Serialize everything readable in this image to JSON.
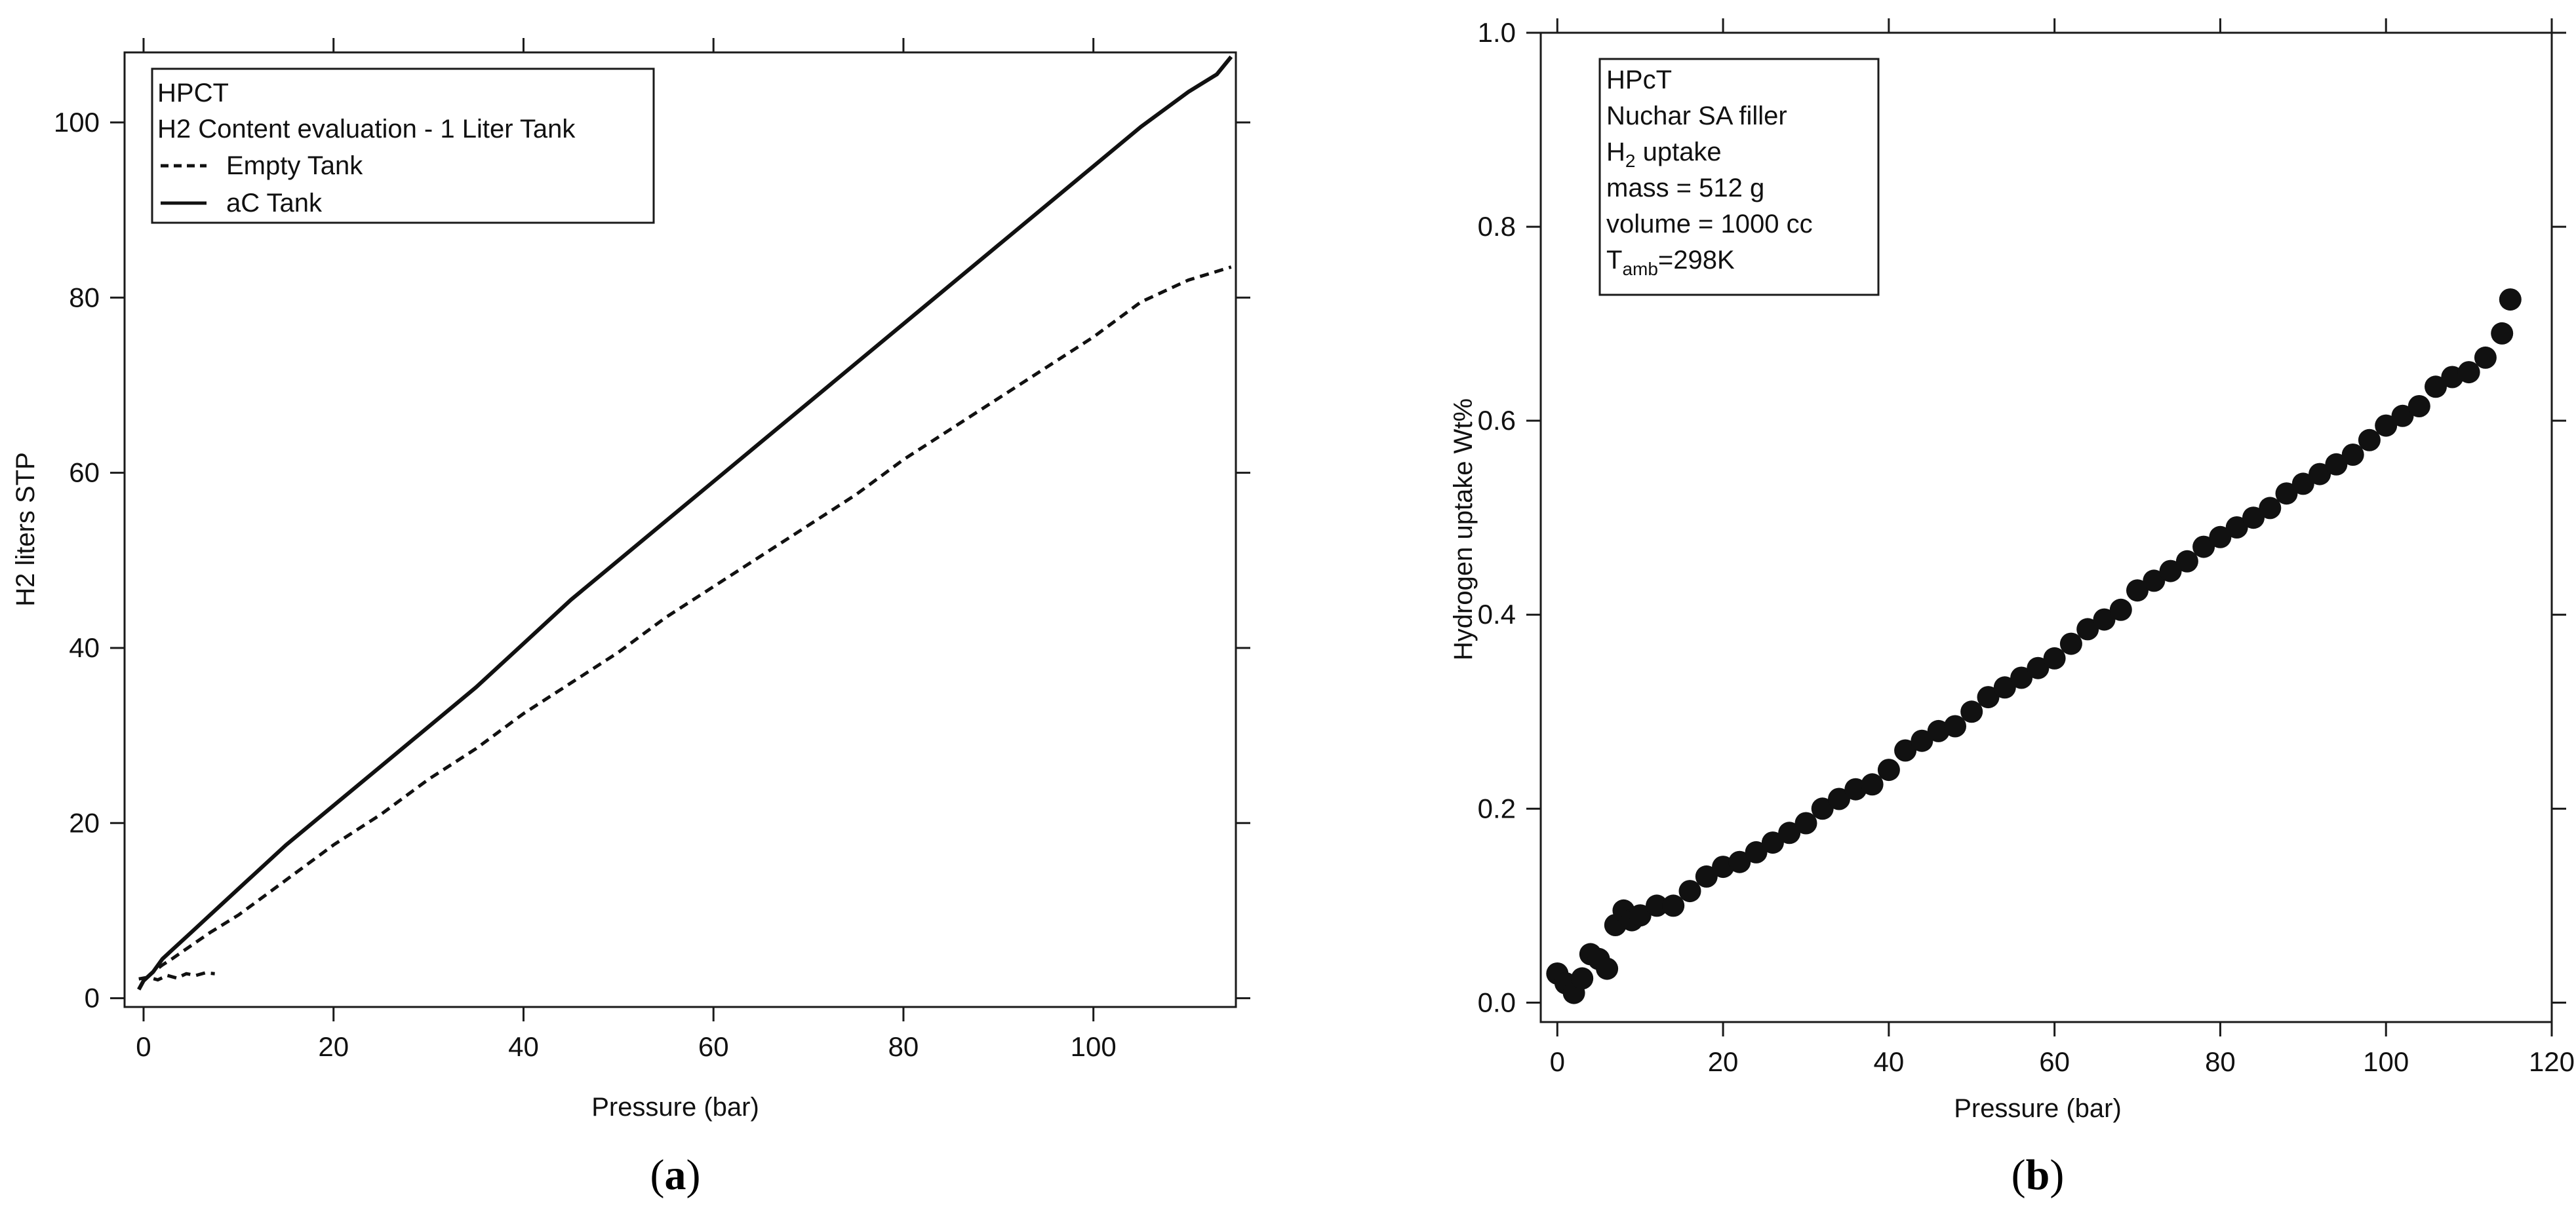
{
  "chart_data": [
    {
      "type": "line",
      "panel_label": "a",
      "legend_lines": [
        "HPCT",
        "H2 Content evaluation - 1 Liter Tank"
      ],
      "xlabel": "Pressure (bar)",
      "ylabel": "H2 liters STP",
      "xlim": [
        -2,
        115
      ],
      "ylim": [
        -1,
        108
      ],
      "xticks": [
        0,
        20,
        40,
        60,
        80,
        100
      ],
      "yticks": [
        0,
        20,
        40,
        60,
        80,
        100
      ],
      "grid": false,
      "legend": "top-left",
      "series": [
        {
          "name": "Empty Tank",
          "style": "dashed",
          "x": [
            -0.5,
            0,
            1,
            2,
            3,
            5,
            7,
            10,
            15,
            20,
            25,
            30,
            35,
            40,
            45,
            50,
            55,
            60,
            65,
            70,
            75,
            80,
            85,
            90,
            95,
            100,
            105,
            110,
            114.5
          ],
          "y": [
            1,
            2,
            3,
            3.8,
            4.5,
            6,
            7.5,
            9.5,
            13.5,
            17.5,
            21,
            25,
            28.5,
            32.5,
            36,
            39.5,
            43.5,
            47,
            50.5,
            54,
            57.5,
            61.5,
            65,
            68.5,
            72,
            75.5,
            79.5,
            82,
            83.5
          ]
        },
        {
          "name": "aC Tank",
          "style": "solid",
          "x": [
            -0.5,
            0,
            1,
            2,
            3,
            5,
            7,
            10,
            15,
            20,
            25,
            30,
            35,
            40,
            45,
            50,
            55,
            60,
            65,
            70,
            75,
            80,
            85,
            90,
            95,
            100,
            105,
            110,
            113,
            114.5
          ],
          "y": [
            1,
            2,
            3,
            4.5,
            5.5,
            7.5,
            9.5,
            12.5,
            17.5,
            22,
            26.5,
            31,
            35.5,
            40.5,
            45.5,
            50,
            54.5,
            59,
            63.5,
            68,
            72.5,
            77,
            81.5,
            86,
            90.5,
            95,
            99.5,
            103.5,
            105.5,
            107.5
          ]
        },
        {
          "name": "",
          "style": "dashed",
          "x": [
            -0.5,
            0.5,
            1.5,
            2.5,
            3.5,
            4.5,
            5.5,
            6.5,
            7.5
          ],
          "y": [
            2.2,
            2.4,
            2.1,
            2.6,
            2.3,
            2.8,
            2.6,
            2.9,
            2.8
          ]
        }
      ]
    },
    {
      "type": "scatter",
      "panel_label": "b",
      "legend_lines": [
        "HPcT",
        "Nuchar SA filler",
        "H2 uptake",
        "mass = 512 g",
        "volume = 1000 cc",
        "Tamb=298K"
      ],
      "xlabel": "Pressure (bar)",
      "ylabel": "Hydrogen uptake Wt%",
      "xlim": [
        -2,
        120
      ],
      "ylim": [
        -0.02,
        1.0
      ],
      "xticks": [
        0,
        20,
        40,
        60,
        80,
        100,
        120
      ],
      "yticks": [
        "0.0",
        "0.2",
        "0.4",
        "0.6",
        "0.8",
        "1.0"
      ],
      "grid": false,
      "legend": "top-left",
      "series": [
        {
          "name": "",
          "x": [
            0,
            1,
            2,
            3,
            4,
            5,
            6,
            7,
            8,
            9,
            10,
            12,
            14,
            16,
            18,
            20,
            22,
            24,
            26,
            28,
            30,
            32,
            34,
            36,
            38,
            40,
            42,
            44,
            46,
            48,
            50,
            52,
            54,
            56,
            58,
            60,
            62,
            64,
            66,
            68,
            70,
            72,
            74,
            76,
            78,
            80,
            82,
            84,
            86,
            88,
            90,
            92,
            94,
            96,
            98,
            100,
            102,
            104,
            106,
            108,
            110,
            112,
            114,
            115
          ],
          "y": [
            0.03,
            0.02,
            0.01,
            0.025,
            0.05,
            0.045,
            0.035,
            0.08,
            0.095,
            0.085,
            0.09,
            0.1,
            0.1,
            0.115,
            0.13,
            0.14,
            0.145,
            0.155,
            0.165,
            0.175,
            0.185,
            0.2,
            0.21,
            0.22,
            0.225,
            0.24,
            0.26,
            0.27,
            0.28,
            0.285,
            0.3,
            0.315,
            0.325,
            0.335,
            0.345,
            0.355,
            0.37,
            0.385,
            0.395,
            0.405,
            0.425,
            0.435,
            0.445,
            0.455,
            0.47,
            0.48,
            0.49,
            0.5,
            0.51,
            0.525,
            0.535,
            0.545,
            0.555,
            0.565,
            0.58,
            0.595,
            0.605,
            0.615,
            0.635,
            0.645,
            0.65,
            0.665,
            0.69,
            0.725
          ]
        }
      ]
    }
  ]
}
